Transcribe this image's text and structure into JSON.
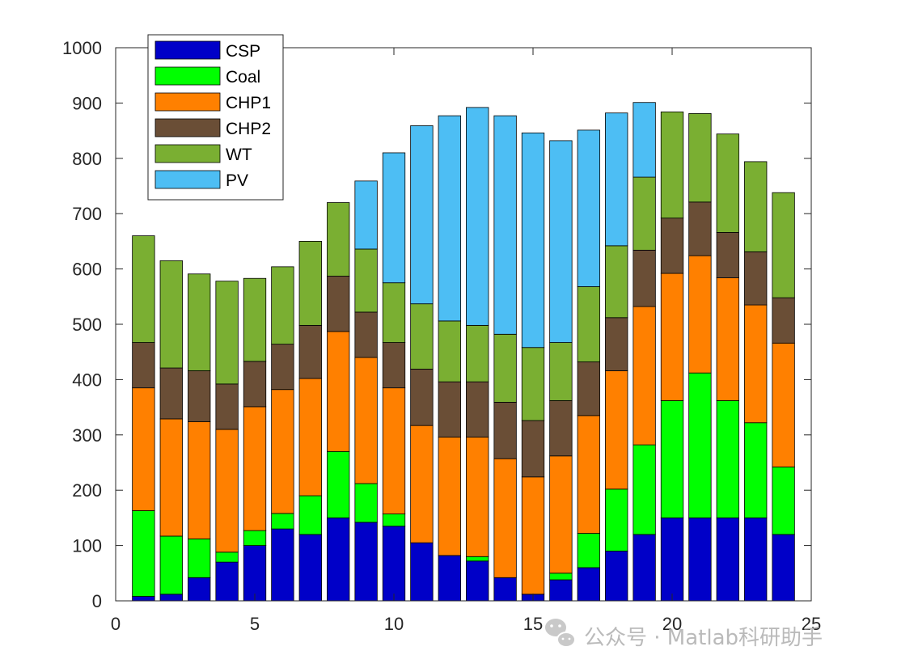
{
  "chart_data": {
    "type": "bar",
    "stacked": true,
    "x": [
      1,
      2,
      3,
      4,
      5,
      6,
      7,
      8,
      9,
      10,
      11,
      12,
      13,
      14,
      15,
      16,
      17,
      18,
      19,
      20,
      21,
      22,
      23,
      24
    ],
    "xlim": [
      0,
      25
    ],
    "ylim": [
      0,
      1000
    ],
    "xticks": [
      0,
      5,
      10,
      15,
      20,
      25
    ],
    "yticks": [
      0,
      100,
      200,
      300,
      400,
      500,
      600,
      700,
      800,
      900,
      1000
    ],
    "title": "",
    "xlabel": "",
    "ylabel": "",
    "grid": false,
    "legend_position": "top-left",
    "series": [
      {
        "name": "CSP",
        "color": "#0000c8",
        "values": [
          8,
          12,
          42,
          70,
          100,
          130,
          120,
          150,
          142,
          135,
          105,
          82,
          72,
          42,
          12,
          38,
          60,
          90,
          120,
          150,
          150,
          150,
          150,
          120
        ]
      },
      {
        "name": "Coal",
        "color": "#00ff00",
        "values": [
          155,
          105,
          70,
          18,
          27,
          28,
          70,
          120,
          70,
          22,
          0,
          0,
          8,
          0,
          0,
          12,
          62,
          112,
          162,
          212,
          262,
          212,
          172,
          122
        ]
      },
      {
        "name": "CHP1",
        "color": "#ff8000",
        "values": [
          222,
          212,
          212,
          222,
          224,
          224,
          212,
          217,
          228,
          228,
          212,
          214,
          216,
          215,
          212,
          212,
          213,
          214,
          250,
          230,
          212,
          222,
          213,
          224
        ]
      },
      {
        "name": "CHP2",
        "color": "#6a4e36",
        "values": [
          82,
          92,
          92,
          82,
          82,
          82,
          96,
          100,
          82,
          82,
          102,
          100,
          100,
          102,
          102,
          100,
          97,
          96,
          102,
          100,
          97,
          82,
          96,
          82
        ]
      },
      {
        "name": "WT",
        "color": "#7aaf32",
        "values": [
          193,
          194,
          175,
          186,
          150,
          140,
          152,
          133,
          114,
          108,
          118,
          110,
          102,
          123,
          132,
          105,
          136,
          130,
          132,
          192,
          160,
          178,
          163,
          190
        ]
      },
      {
        "name": "PV",
        "color": "#4dbef4",
        "values": [
          0,
          0,
          0,
          0,
          0,
          0,
          0,
          0,
          123,
          235,
          322,
          371,
          394,
          395,
          388,
          365,
          283,
          240,
          135,
          0,
          0,
          0,
          0,
          0
        ]
      }
    ]
  },
  "watermark": {
    "text": "公众号 · Matlab科研助手",
    "icon": "wechat-icon"
  }
}
